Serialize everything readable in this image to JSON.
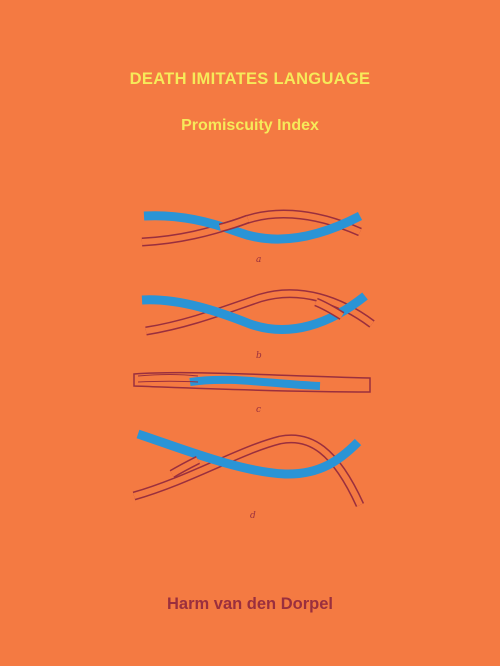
{
  "cover": {
    "title": "DEATH IMITATES LANGUAGE",
    "subtitle": "Promiscuity Index",
    "author": "Harm van den Dorpel"
  },
  "figure": {
    "labels": [
      "a",
      "b",
      "c",
      "d"
    ]
  },
  "colors": {
    "background": "#f47a42",
    "title_text": "#f6ea5a",
    "author_text": "#9a2f3e",
    "strand_blue": "#2a94d6",
    "strand_outline": "#9a2f3e"
  }
}
